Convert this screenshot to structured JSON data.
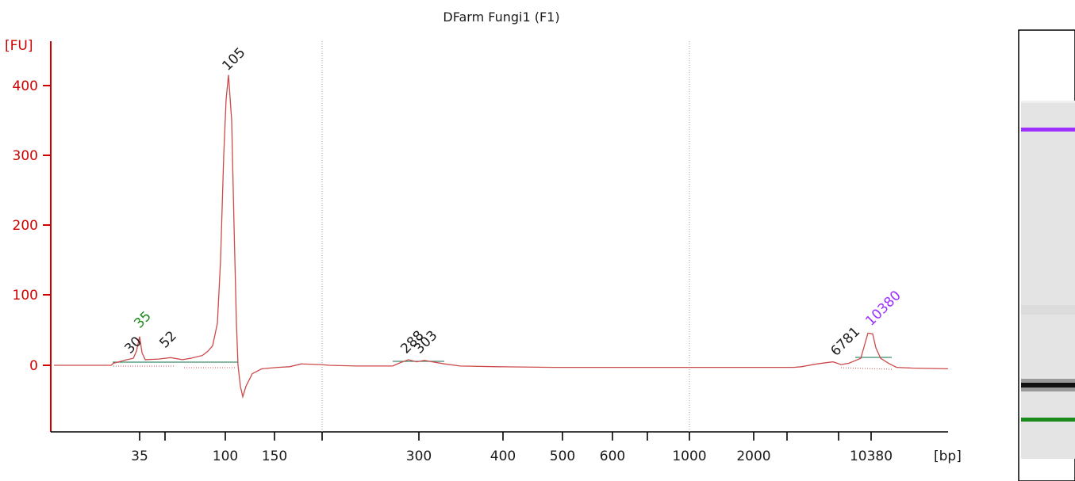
{
  "chart_data": {
    "type": "line",
    "title": "DFarm Fungi1 (F1)",
    "ylabel": "[FU]",
    "xlabel": "[bp]",
    "ylim": [
      -95,
      460
    ],
    "y_ticks": [
      "0",
      "100",
      "200",
      "300",
      "400"
    ],
    "x_ticks": [
      "35",
      "100",
      "150",
      "300",
      "400",
      "500",
      "600",
      "1000",
      "2000",
      "10380"
    ],
    "grid": "vertical dotted",
    "colors": {
      "trace": "#cc4a4a",
      "axis": "#cc0000",
      "lower_marker": "#1a8a1a",
      "upper_marker": "#9b30ff",
      "baseline": "#3e8a6e"
    },
    "series": [
      {
        "values": [
          {
            "x": 35,
            "y": 41
          },
          {
            "x": 105,
            "y": 415
          },
          {
            "x": 115,
            "y": -45
          },
          {
            "x": 288,
            "y": 8
          },
          {
            "x": 303,
            "y": 7
          },
          {
            "x": 6781,
            "y": 5
          },
          {
            "x": 10380,
            "y": 46
          }
        ]
      }
    ],
    "peak_labels": [
      {
        "label": "30",
        "color": "#1a1a1a"
      },
      {
        "label": "35",
        "color": "#1a8a1a"
      },
      {
        "label": "52",
        "color": "#1a1a1a"
      },
      {
        "label": "105",
        "color": "#1a1a1a"
      },
      {
        "label": "288",
        "color": "#1a1a1a"
      },
      {
        "label": "303",
        "color": "#1a1a1a"
      },
      {
        "label": "6781",
        "color": "#1a1a1a"
      },
      {
        "label": "10380",
        "color": "#9b30ff"
      }
    ],
    "gel_lane": {
      "bands": [
        "upper-marker",
        "sample-band",
        "lower-marker"
      ]
    }
  }
}
